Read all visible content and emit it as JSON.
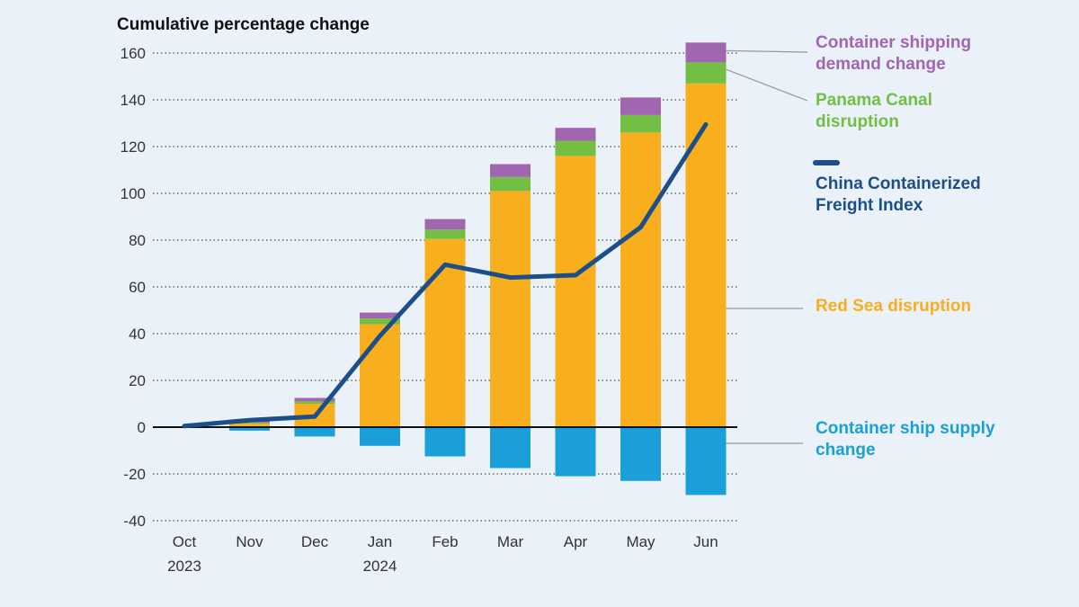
{
  "chart_data": {
    "type": "bar",
    "stacked": true,
    "ylabel": "Cumulative percentage change",
    "categories": [
      {
        "line1": "Oct",
        "line2": "2023"
      },
      {
        "line1": "Nov",
        "line2": ""
      },
      {
        "line1": "Dec",
        "line2": ""
      },
      {
        "line1": "Jan",
        "line2": "2024"
      },
      {
        "line1": "Feb",
        "line2": ""
      },
      {
        "line1": "Mar",
        "line2": ""
      },
      {
        "line1": "Apr",
        "line2": ""
      },
      {
        "line1": "May",
        "line2": ""
      },
      {
        "line1": "Jun",
        "line2": ""
      }
    ],
    "ylim": [
      -40,
      160
    ],
    "yticks": [
      160,
      140,
      120,
      100,
      80,
      60,
      40,
      20,
      0,
      -20,
      -40
    ],
    "grid": true,
    "legend_position": "right",
    "series": [
      {
        "name": "Container ship supply change",
        "kind": "bar",
        "color": "#1a9fd9",
        "values": [
          0,
          -1.5,
          -4,
          -8,
          -12.5,
          -17.5,
          -21,
          -23,
          -29
        ]
      },
      {
        "name": "Red Sea disruption",
        "kind": "bar",
        "color": "#f9ae1e",
        "values": [
          0,
          1.5,
          10,
          44,
          80.5,
          101,
          116,
          126,
          147
        ]
      },
      {
        "name": "Panama Canal disruption",
        "kind": "bar",
        "color": "#72bf44",
        "values": [
          0,
          0.5,
          1,
          2.5,
          4,
          6,
          6.5,
          7.5,
          9
        ]
      },
      {
        "name": "Container shipping demand change",
        "kind": "bar",
        "color": "#a066b0",
        "values": [
          0,
          0.5,
          1.5,
          2.5,
          4.5,
          5.5,
          5.5,
          7.5,
          8.5
        ]
      },
      {
        "name": "China Containerized Freight Index",
        "kind": "line",
        "color": "#1c4f8a",
        "values": [
          0.5,
          3,
          4.5,
          39,
          69.5,
          64,
          65,
          85.5,
          129.5
        ]
      }
    ]
  }
}
